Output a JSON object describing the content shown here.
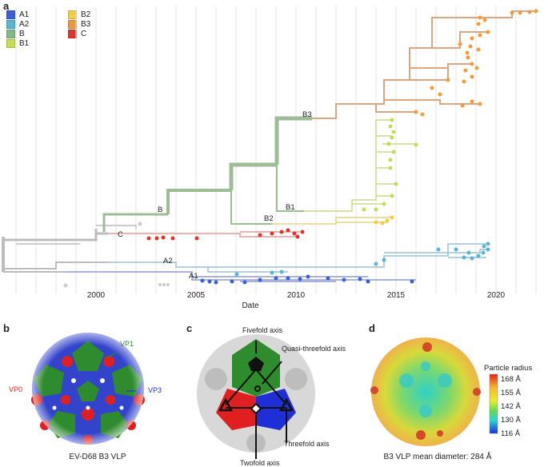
{
  "panels": {
    "a": "a",
    "b": "b",
    "c": "c",
    "d": "d"
  },
  "legend": {
    "col1": [
      {
        "label": "A1",
        "color": "#3b5fd9"
      },
      {
        "label": "A2",
        "color": "#5bb3d6"
      },
      {
        "label": "B",
        "color": "#86b58a"
      },
      {
        "label": "B1",
        "color": "#c7dc56"
      }
    ],
    "col2": [
      {
        "label": "B2",
        "color": "#f2cf40"
      },
      {
        "label": "B3",
        "color": "#f0953a"
      },
      {
        "label": "C",
        "color": "#e2332b"
      }
    ]
  },
  "tree": {
    "xlabel": "Date",
    "ticks": [
      "2000",
      "2005",
      "2010",
      "2015",
      "2020"
    ],
    "clade_labels": [
      "B3",
      "B",
      "B1",
      "B2",
      "C",
      "A2",
      "A1"
    ]
  },
  "panel_b": {
    "caption": "EV-D68 B3 VLP",
    "labels": {
      "vp1": "VP1",
      "vp0": "VP0",
      "vp3": "VP3"
    },
    "colors": {
      "vp1": "#2e8b2e",
      "vp0": "#e02020",
      "vp3": "#1f2fd6"
    }
  },
  "panel_c": {
    "labels": {
      "fivefold": "Fivefold axis",
      "quasi": "Quasi-threefold axis",
      "threefold": "Threefold axis",
      "twofold": "Twofold axis"
    }
  },
  "panel_d": {
    "caption": "B3 VLP mean diameter: 284 Å",
    "scale_title": "Particle radius",
    "scale_ticks": [
      "168 Å",
      "155 Å",
      "142 Å",
      "130 Å",
      "116 Å"
    ]
  }
}
